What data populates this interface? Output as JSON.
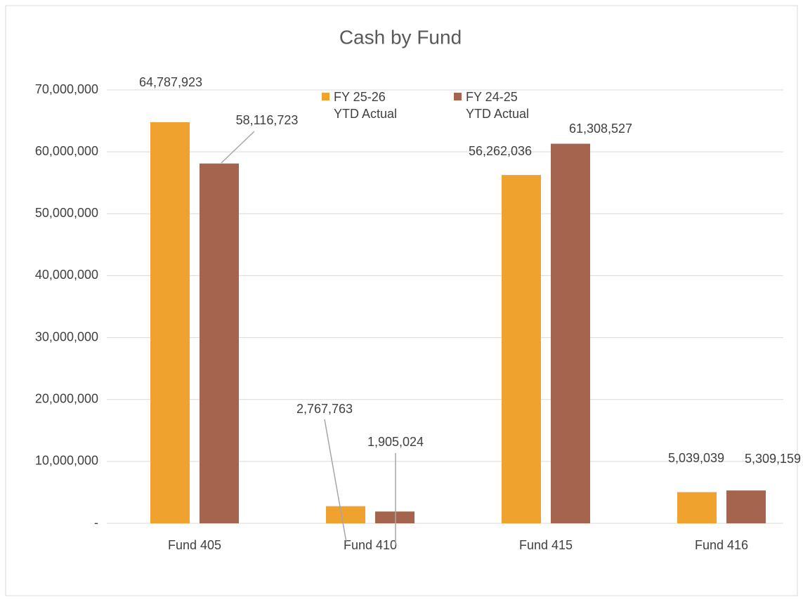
{
  "chart_data": {
    "type": "bar",
    "title": "Cash by Fund",
    "categories": [
      "Fund 405",
      "Fund 410",
      "Fund 415",
      "Fund 416"
    ],
    "series": [
      {
        "name": "FY 25-26 YTD Actual",
        "color": "#f0a22e",
        "values": [
          64787923,
          2767763,
          56262036,
          5039039
        ],
        "value_labels": [
          "64,787,923",
          "2,767,763",
          "56,262,036",
          "5,039,039"
        ]
      },
      {
        "name": "FY 24-25 YTD Actual",
        "color": "#a5644e",
        "values": [
          58116723,
          1905024,
          61308527,
          5309159
        ],
        "value_labels": [
          "58,116,723",
          "1,905,024",
          "61,308,527",
          "5,309,159"
        ]
      }
    ],
    "ylim": [
      0,
      70000000
    ],
    "yticks": [
      {
        "value": 0,
        "label": "-"
      },
      {
        "value": 10000000,
        "label": "10,000,000"
      },
      {
        "value": 20000000,
        "label": "20,000,000"
      },
      {
        "value": 30000000,
        "label": "30,000,000"
      },
      {
        "value": 40000000,
        "label": "40,000,000"
      },
      {
        "value": 50000000,
        "label": "50,000,000"
      },
      {
        "value": 60000000,
        "label": "60,000,000"
      },
      {
        "value": 70000000,
        "label": "70,000,000"
      }
    ],
    "grid": true,
    "legend": "top"
  }
}
